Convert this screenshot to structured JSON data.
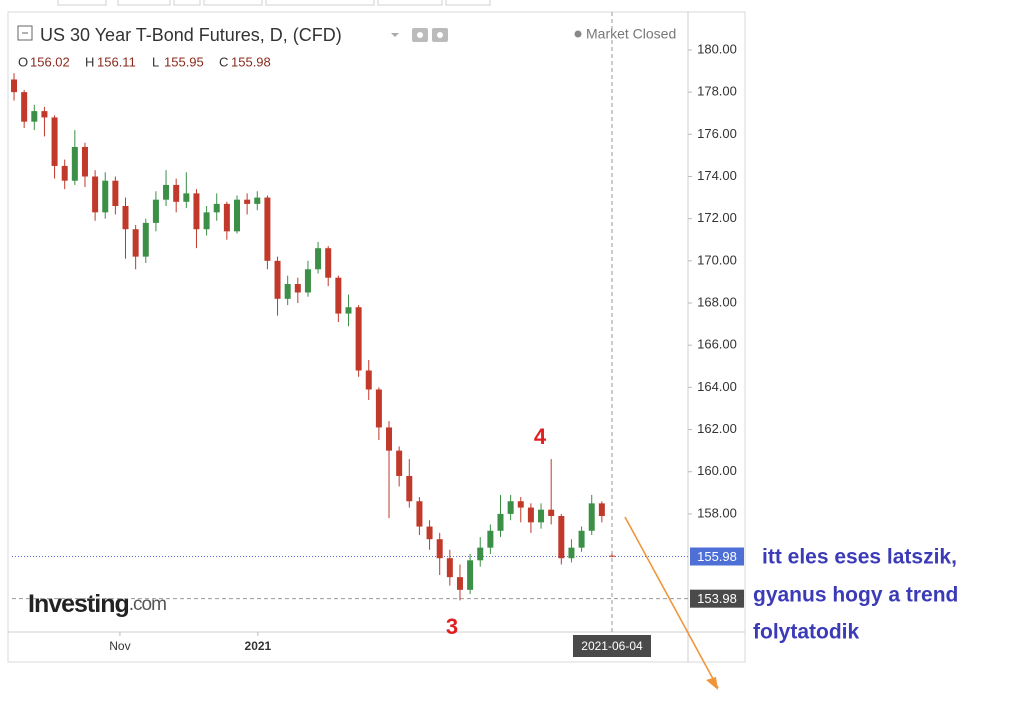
{
  "chart_data": {
    "type": "candlestick",
    "title": "US 30 Year T-Bond Futures, D, (CFD)",
    "status": "Market Closed",
    "logo": "Investing",
    "logo_suffix": ".com",
    "ohlc_labels": [
      "O",
      "H",
      "L",
      "C"
    ],
    "open": [
      178.6,
      178.0,
      176.6,
      177.1,
      176.8,
      174.5,
      173.8,
      175.4,
      174.0,
      172.3,
      173.8,
      172.6,
      171.5,
      170.2,
      171.8,
      172.9,
      173.6,
      172.8,
      173.2,
      171.5,
      172.3,
      172.7,
      171.4,
      172.9,
      172.7,
      173.0,
      170.0,
      168.2,
      168.9,
      168.5,
      169.6,
      170.6,
      169.2,
      167.5,
      167.8,
      164.8,
      163.9,
      162.1,
      161.0,
      159.8,
      158.6,
      157.4,
      156.8,
      155.9,
      155.0,
      154.4,
      155.8,
      156.4,
      157.2,
      158.0,
      158.6,
      158.3,
      157.6,
      158.2,
      157.9,
      155.9,
      156.4,
      157.2,
      158.5,
      156.02
    ],
    "high": [
      178.9,
      178.1,
      177.4,
      177.3,
      176.9,
      174.8,
      176.2,
      175.6,
      174.3,
      174.2,
      174.0,
      173.0,
      171.7,
      172.0,
      173.3,
      174.3,
      173.9,
      174.2,
      173.4,
      172.6,
      173.2,
      172.8,
      173.1,
      173.2,
      173.3,
      173.1,
      170.2,
      169.3,
      169.2,
      170.0,
      170.9,
      170.7,
      169.3,
      168.4,
      167.9,
      165.3,
      164.0,
      162.4,
      161.2,
      160.6,
      158.8,
      157.7,
      157.1,
      156.3,
      155.6,
      156.1,
      156.9,
      157.5,
      158.9,
      158.9,
      158.8,
      158.5,
      158.5,
      160.6,
      158.0,
      156.8,
      157.4,
      158.9,
      158.6,
      156.11
    ],
    "low": [
      177.6,
      176.3,
      176.2,
      175.9,
      173.9,
      173.4,
      173.6,
      173.5,
      171.9,
      172.0,
      172.2,
      170.1,
      169.6,
      169.9,
      171.4,
      172.6,
      172.3,
      172.5,
      170.6,
      171.2,
      171.9,
      171.0,
      171.3,
      172.2,
      172.4,
      169.6,
      167.4,
      167.9,
      168.0,
      168.3,
      169.4,
      168.8,
      167.1,
      166.9,
      164.5,
      163.4,
      161.5,
      157.8,
      159.3,
      158.3,
      157.0,
      156.3,
      155.1,
      154.6,
      153.9,
      154.2,
      155.5,
      156.1,
      156.9,
      157.7,
      157.6,
      157.1,
      157.3,
      157.5,
      155.6,
      155.7,
      156.2,
      157.0,
      157.6,
      155.95
    ],
    "close": [
      178.0,
      176.6,
      177.1,
      176.8,
      174.5,
      173.8,
      175.4,
      174.0,
      172.3,
      173.8,
      172.6,
      171.5,
      170.2,
      171.8,
      172.9,
      173.6,
      172.8,
      173.2,
      171.5,
      172.3,
      172.7,
      171.4,
      172.9,
      172.7,
      173.0,
      170.0,
      168.2,
      168.9,
      168.5,
      169.6,
      170.6,
      169.2,
      167.5,
      167.8,
      164.8,
      163.9,
      162.1,
      161.0,
      159.8,
      158.6,
      157.4,
      156.8,
      155.9,
      155.0,
      154.4,
      155.8,
      156.4,
      157.2,
      158.0,
      158.6,
      158.3,
      157.6,
      158.2,
      157.9,
      155.9,
      156.4,
      157.2,
      158.5,
      157.9,
      155.98
    ],
    "colors": {
      "up": "#3b8f46",
      "down": "#c0392b",
      "last": "#4d6fd6"
    },
    "xlim": [
      -0.2,
      66.5
    ],
    "ylim": [
      152.4,
      181.8
    ],
    "yticks": [
      {
        "value": 158,
        "label": "158.00"
      },
      {
        "value": 160,
        "label": "160.00"
      },
      {
        "value": 162,
        "label": "162.00"
      },
      {
        "value": 164,
        "label": "164.00"
      },
      {
        "value": 166,
        "label": "166.00"
      },
      {
        "value": 168,
        "label": "168.00"
      },
      {
        "value": 170,
        "label": "170.00"
      },
      {
        "value": 172,
        "label": "172.00"
      },
      {
        "value": 174,
        "label": "174.00"
      },
      {
        "value": 176,
        "label": "176.00"
      },
      {
        "value": 178,
        "label": "178.00"
      },
      {
        "value": 180,
        "label": "180.00"
      }
    ],
    "xticks": [
      {
        "value": 10.45,
        "label": "Nov"
      },
      {
        "value": 24.06,
        "label": "2021"
      }
    ],
    "crosshair": {
      "x_label": "2021-06-04",
      "price": 153.98
    },
    "annotations": [
      "4",
      "3"
    ],
    "comment": [
      "itt eles eses latszik,",
      "gyanus hogy a trend",
      "folytatodik"
    ]
  }
}
